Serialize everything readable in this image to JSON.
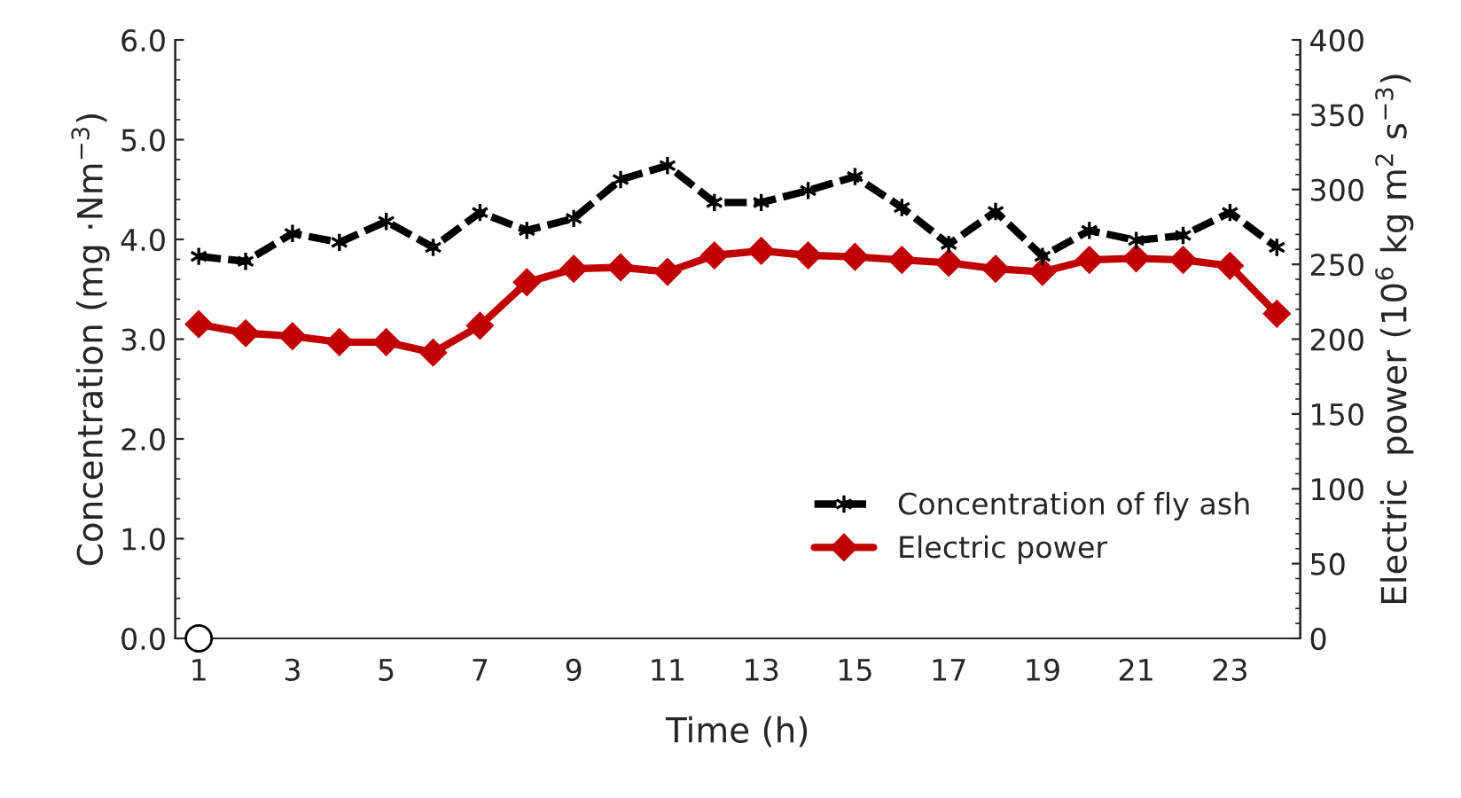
{
  "chart_data": {
    "type": "line",
    "xlabel": "Time (h)",
    "ylabel": "Concentration (mg ·Nm$^{−3}$)",
    "y2label": "Electric  power (10$^{6}$ kg m$^{2}$ s$^{−3}$)",
    "categories": [
      "1",
      null,
      "3",
      null,
      "5",
      null,
      "7",
      null,
      "9",
      null,
      "11",
      null,
      "13",
      null,
      "15",
      null,
      "17",
      null,
      "19",
      null,
      "21",
      null,
      "23",
      null
    ],
    "ylim": [
      0,
      6
    ],
    "yticks": [
      {
        "value": 0,
        "label": "0.0"
      },
      {
        "value": 1,
        "label": "1.0"
      },
      {
        "value": 2,
        "label": "2.0"
      },
      {
        "value": 3,
        "label": "3.0"
      },
      {
        "value": 4,
        "label": "4.0"
      },
      {
        "value": 5,
        "label": "5.0"
      },
      {
        "value": 6,
        "label": "6.0"
      }
    ],
    "y2lim": [
      0,
      400
    ],
    "y2ticks": [
      0,
      50,
      100,
      150,
      200,
      250,
      300,
      350,
      400
    ],
    "grid": false,
    "legend": "bottom right",
    "series": [
      {
        "name": "Concentration of fly ash",
        "color": "#000000",
        "marker": "cross",
        "line_style": "dashed",
        "values": [
          3.83,
          3.78,
          4.06,
          3.97,
          4.18,
          3.92,
          4.27,
          4.09,
          4.21,
          4.6,
          4.74,
          4.37,
          4.37,
          4.49,
          4.63,
          4.32,
          3.95,
          4.28,
          3.83,
          4.09,
          3.99,
          4.04,
          4.27,
          3.92
        ]
      },
      {
        "name": "Electric power",
        "color": "#c00000",
        "marker": "diamond",
        "line_style": "solid",
        "axis": "y2",
        "values": [
          210,
          204,
          202,
          198,
          198,
          191,
          209,
          238,
          247,
          248,
          245,
          256,
          259,
          256,
          255,
          253,
          251,
          247,
          245,
          253,
          254,
          253,
          249,
          217
        ]
      },
      {
        "type": "scatter",
        "color": "#ffffff",
        "marker": "circle",
        "x": [
          "1"
        ],
        "values": [
          0
        ]
      }
    ]
  }
}
